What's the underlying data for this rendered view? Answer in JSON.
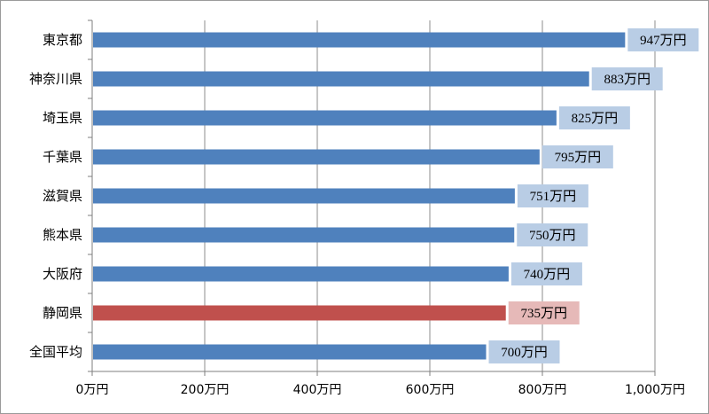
{
  "chart_data": {
    "type": "bar",
    "orientation": "horizontal",
    "title": "",
    "xlabel": "",
    "ylabel": "",
    "categories": [
      "東京都",
      "神奈川県",
      "埼玉県",
      "千葉県",
      "滋賀県",
      "熊本県",
      "大阪府",
      "静岡県",
      "全国平均"
    ],
    "values": [
      947,
      883,
      825,
      795,
      751,
      750,
      740,
      735,
      700
    ],
    "data_labels": [
      "947万円",
      "883万円",
      "825万円",
      "795万円",
      "751万円",
      "750万円",
      "740万円",
      "735万円",
      "700万円"
    ],
    "xlim": [
      0,
      1000
    ],
    "xticks": [
      0,
      200,
      400,
      600,
      800,
      1000
    ],
    "xtick_labels": [
      "0万円",
      "200万円",
      "400万円",
      "600万円",
      "800万円",
      "1,000万円"
    ],
    "highlight_index": 7,
    "grid": "vertical",
    "legend": "none",
    "colors": {
      "bar": "#4f81bd",
      "bar_highlight": "#c0504d",
      "label_bg": "#b9cde5",
      "label_bg_highlight": "#e6b9b8",
      "grid": "#8c8c8c",
      "axis": "#7f7f7f"
    }
  }
}
